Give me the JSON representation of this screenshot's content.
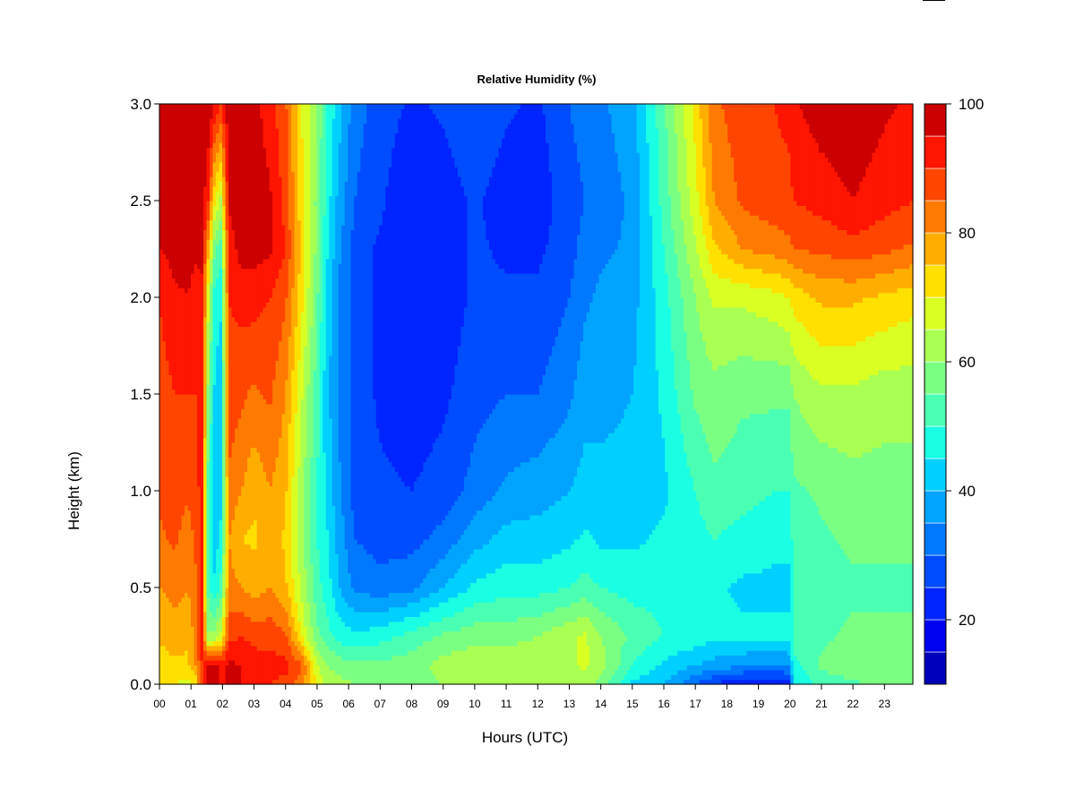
{
  "chart_data": {
    "type": "heatmap",
    "title": "Relative Humidity (%)",
    "xlabel": "Hours (UTC)",
    "ylabel": "Height (km)",
    "x_ticks": [
      "00",
      "01",
      "02",
      "03",
      "04",
      "05",
      "06",
      "07",
      "08",
      "09",
      "10",
      "11",
      "12",
      "13",
      "14",
      "15",
      "16",
      "17",
      "18",
      "19",
      "20",
      "21",
      "22",
      "23"
    ],
    "y_ticks": [
      "0.0",
      "0.5",
      "1.0",
      "1.5",
      "2.0",
      "2.5",
      "3.0"
    ],
    "xlim": [
      0,
      23.9
    ],
    "ylim": [
      0,
      3.0
    ],
    "colorbar": {
      "ticks": [
        "20",
        "40",
        "60",
        "80",
        "100"
      ],
      "range": [
        10,
        100
      ],
      "levels": [
        10,
        15,
        20,
        25,
        30,
        35,
        40,
        45,
        50,
        55,
        60,
        65,
        70,
        75,
        80,
        85,
        90,
        95,
        100
      ],
      "colors": [
        "#00007f",
        "#0000bb",
        "#0000f0",
        "#0024ff",
        "#004cff",
        "#0078ff",
        "#00a4ff",
        "#00d0ff",
        "#1affe3",
        "#4affb3",
        "#7aff83",
        "#aaff53",
        "#daff23",
        "#ffe000",
        "#ffae00",
        "#ff7a00",
        "#ff4500",
        "#ff1500",
        "#cc0000",
        "#800000"
      ]
    },
    "profile_heights_km": [
      0.0,
      0.1,
      0.25,
      0.5,
      0.75,
      1.0,
      1.5,
      2.0,
      2.25,
      2.5,
      3.0
    ],
    "profiles": [
      {
        "x": 0.0,
        "rh": [
          70,
          72,
          76,
          80,
          84,
          86,
          88,
          90,
          95,
          98,
          99
        ]
      },
      {
        "x": 0.5,
        "rh": [
          70,
          74,
          78,
          82,
          86,
          88,
          90,
          94,
          97,
          98,
          99
        ]
      },
      {
        "x": 0.9,
        "rh": [
          68,
          74,
          76,
          80,
          82,
          86,
          90,
          95,
          97,
          98,
          99
        ]
      },
      {
        "x": 1.15,
        "rh": [
          72,
          80,
          82,
          84,
          86,
          88,
          90,
          93,
          96,
          98,
          99
        ]
      },
      {
        "x": 1.35,
        "rh": [
          88,
          90,
          92,
          92,
          92,
          92,
          93,
          94,
          96,
          98,
          99
        ]
      },
      {
        "x": 1.55,
        "rh": [
          99,
          96,
          60,
          52,
          50,
          52,
          58,
          66,
          76,
          90,
          99
        ]
      },
      {
        "x": 1.75,
        "rh": [
          98,
          96,
          62,
          46,
          42,
          40,
          44,
          48,
          56,
          70,
          95
        ]
      },
      {
        "x": 1.95,
        "rh": [
          95,
          94,
          66,
          52,
          46,
          44,
          42,
          46,
          52,
          64,
          90
        ]
      },
      {
        "x": 2.2,
        "rh": [
          95,
          96,
          88,
          82,
          80,
          84,
          88,
          90,
          92,
          96,
          99
        ]
      },
      {
        "x": 2.6,
        "rh": [
          95,
          95,
          90,
          80,
          75,
          80,
          86,
          92,
          97,
          98,
          99
        ]
      },
      {
        "x": 3.0,
        "rh": [
          92,
          93,
          88,
          78,
          74,
          76,
          84,
          92,
          97,
          98,
          97
        ]
      },
      {
        "x": 3.5,
        "rh": [
          90,
          92,
          88,
          80,
          78,
          80,
          86,
          90,
          96,
          96,
          92
        ]
      },
      {
        "x": 4.0,
        "rh": [
          88,
          92,
          86,
          76,
          74,
          76,
          80,
          86,
          90,
          88,
          86
        ]
      },
      {
        "x": 4.5,
        "rh": [
          82,
          86,
          70,
          64,
          62,
          62,
          66,
          72,
          74,
          72,
          70
        ]
      },
      {
        "x": 5.0,
        "rh": [
          70,
          66,
          56,
          52,
          50,
          50,
          52,
          56,
          58,
          58,
          60
        ]
      },
      {
        "x": 5.3,
        "rh": [
          62,
          60,
          52,
          48,
          46,
          44,
          42,
          44,
          46,
          48,
          50
        ]
      },
      {
        "x": 5.7,
        "rh": [
          62,
          58,
          48,
          40,
          38,
          36,
          34,
          34,
          36,
          38,
          42
        ]
      },
      {
        "x": 6.2,
        "rh": [
          60,
          56,
          46,
          34,
          30,
          28,
          28,
          28,
          28,
          30,
          32
        ]
      },
      {
        "x": 7.0,
        "rh": [
          58,
          56,
          48,
          32,
          28,
          26,
          24,
          24,
          24,
          26,
          28
        ]
      },
      {
        "x": 8.0,
        "rh": [
          58,
          58,
          52,
          34,
          28,
          25,
          22,
          22,
          21,
          20,
          24
        ]
      },
      {
        "x": 9.0,
        "rh": [
          60,
          62,
          56,
          40,
          32,
          27,
          24,
          22,
          22,
          22,
          26
        ]
      },
      {
        "x": 10.0,
        "rh": [
          62,
          64,
          58,
          46,
          38,
          32,
          28,
          26,
          26,
          26,
          30
        ]
      },
      {
        "x": 11.0,
        "rh": [
          62,
          64,
          58,
          48,
          42,
          36,
          30,
          26,
          24,
          22,
          26
        ]
      },
      {
        "x": 12.0,
        "rh": [
          62,
          64,
          60,
          48,
          42,
          38,
          30,
          26,
          24,
          22,
          24
        ]
      },
      {
        "x": 13.0,
        "rh": [
          62,
          64,
          64,
          50,
          44,
          40,
          34,
          30,
          28,
          28,
          30
        ]
      },
      {
        "x": 13.5,
        "rh": [
          62,
          66,
          66,
          52,
          46,
          42,
          38,
          34,
          32,
          30,
          32
        ]
      },
      {
        "x": 14.0,
        "rh": [
          58,
          62,
          60,
          50,
          44,
          42,
          38,
          36,
          34,
          32,
          34
        ]
      },
      {
        "x": 15.0,
        "rh": [
          44,
          50,
          54,
          48,
          44,
          42,
          40,
          38,
          36,
          36,
          38
        ]
      },
      {
        "x": 16.0,
        "rh": [
          40,
          44,
          50,
          48,
          46,
          44,
          46,
          48,
          50,
          52,
          54
        ]
      },
      {
        "x": 17.0,
        "rh": [
          30,
          40,
          48,
          46,
          48,
          50,
          56,
          60,
          64,
          68,
          72
        ]
      },
      {
        "x": 17.6,
        "rh": [
          24,
          38,
          46,
          46,
          50,
          54,
          58,
          66,
          74,
          80,
          84
        ]
      },
      {
        "x": 18.5,
        "rh": [
          20,
          36,
          46,
          44,
          48,
          52,
          56,
          66,
          80,
          86,
          88
        ]
      },
      {
        "x": 19.5,
        "rh": [
          20,
          34,
          46,
          44,
          46,
          50,
          56,
          68,
          82,
          88,
          90
        ]
      },
      {
        "x": 20.0,
        "rh": [
          22,
          36,
          46,
          44,
          46,
          50,
          56,
          70,
          84,
          88,
          92
        ]
      },
      {
        "x": 20.1,
        "rh": [
          45,
          48,
          52,
          52,
          52,
          54,
          60,
          72,
          85,
          90,
          94
        ]
      },
      {
        "x": 21.0,
        "rh": [
          52,
          56,
          54,
          52,
          54,
          56,
          64,
          76,
          86,
          92,
          98
        ]
      },
      {
        "x": 22.0,
        "rh": [
          54,
          58,
          56,
          54,
          56,
          58,
          64,
          76,
          88,
          95,
          99
        ]
      },
      {
        "x": 23.0,
        "rh": [
          56,
          60,
          56,
          54,
          56,
          58,
          62,
          74,
          86,
          92,
          96
        ]
      },
      {
        "x": 23.9,
        "rh": [
          56,
          60,
          56,
          54,
          56,
          58,
          62,
          72,
          84,
          90,
          94
        ]
      }
    ]
  }
}
